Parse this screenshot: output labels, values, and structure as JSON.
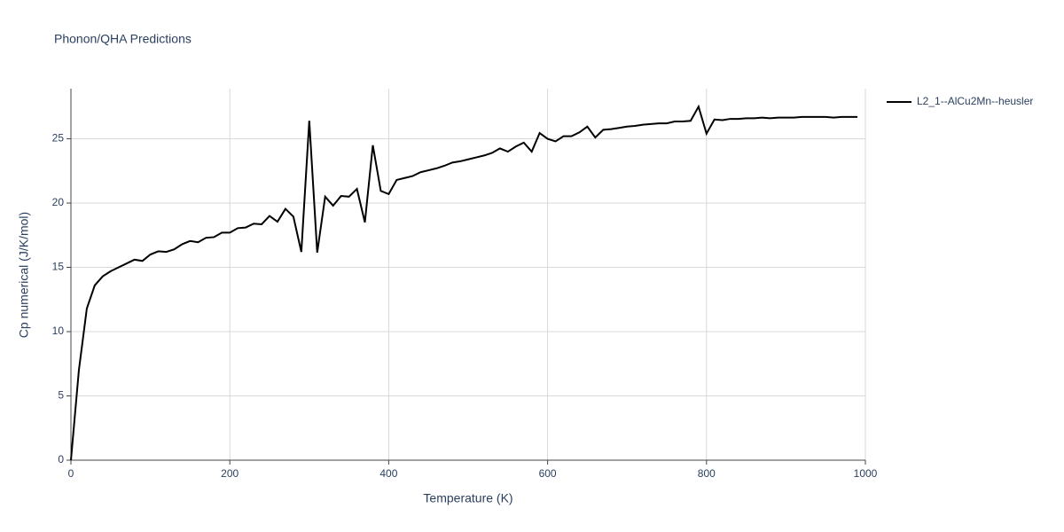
{
  "chart_data": {
    "type": "line",
    "title": "Phonon/QHA Predictions",
    "x_label": "Temperature (K)",
    "y_label": "Cp numerical (J/K/mol)",
    "x": [
      0,
      10,
      20,
      30,
      40,
      50,
      60,
      70,
      80,
      90,
      100,
      110,
      120,
      130,
      140,
      150,
      160,
      170,
      180,
      190,
      200,
      210,
      220,
      230,
      240,
      250,
      260,
      270,
      280,
      290,
      300,
      310,
      320,
      330,
      340,
      350,
      360,
      370,
      380,
      390,
      400,
      410,
      420,
      430,
      440,
      450,
      460,
      470,
      480,
      490,
      500,
      510,
      520,
      530,
      540,
      550,
      560,
      570,
      580,
      590,
      600,
      610,
      620,
      630,
      640,
      650,
      660,
      670,
      680,
      690,
      700,
      710,
      720,
      730,
      740,
      750,
      760,
      770,
      780,
      790,
      800,
      810,
      820,
      830,
      840,
      850,
      860,
      870,
      880,
      890,
      900,
      910,
      920,
      930,
      940,
      950,
      960,
      970,
      980,
      990
    ],
    "series": [
      {
        "name": "L2_1--AlCu2Mn--heusler",
        "color": "#000000",
        "values": [
          0,
          7,
          11.8,
          13.6,
          14.3,
          14.7,
          15.0,
          15.3,
          15.6,
          15.5,
          16.0,
          16.25,
          16.2,
          16.4,
          16.8,
          17.05,
          16.95,
          17.3,
          17.35,
          17.7,
          17.7,
          18.05,
          18.1,
          18.4,
          18.35,
          19.0,
          18.55,
          19.55,
          18.95,
          16.2,
          26.4,
          16.15,
          20.5,
          19.8,
          20.55,
          20.5,
          21.1,
          18.5,
          24.5,
          20.95,
          20.7,
          21.8,
          21.95,
          22.1,
          22.4,
          22.55,
          22.7,
          22.9,
          23.15,
          23.25,
          23.4,
          23.55,
          23.7,
          23.9,
          24.25,
          24.0,
          24.4,
          24.7,
          24.0,
          25.45,
          25.0,
          24.8,
          25.2,
          25.2,
          25.5,
          25.95,
          25.1,
          25.7,
          25.75,
          25.85,
          25.95,
          26.0,
          26.1,
          26.15,
          26.2,
          26.2,
          26.35,
          26.35,
          26.4,
          27.5,
          25.4,
          26.5,
          26.45,
          26.55,
          26.55,
          26.6,
          26.6,
          26.65,
          26.6,
          26.65,
          26.65,
          26.65,
          26.7,
          26.7,
          26.7,
          26.7,
          26.65,
          26.7,
          26.7,
          26.7
        ]
      }
    ],
    "xlim": [
      0,
      1000
    ],
    "xticks": [
      0,
      200,
      400,
      600,
      800,
      1000
    ],
    "ylim": [
      0,
      28.9
    ],
    "yticks": [
      0,
      5,
      10,
      15,
      20,
      25
    ],
    "grid": true,
    "legend": "right"
  }
}
